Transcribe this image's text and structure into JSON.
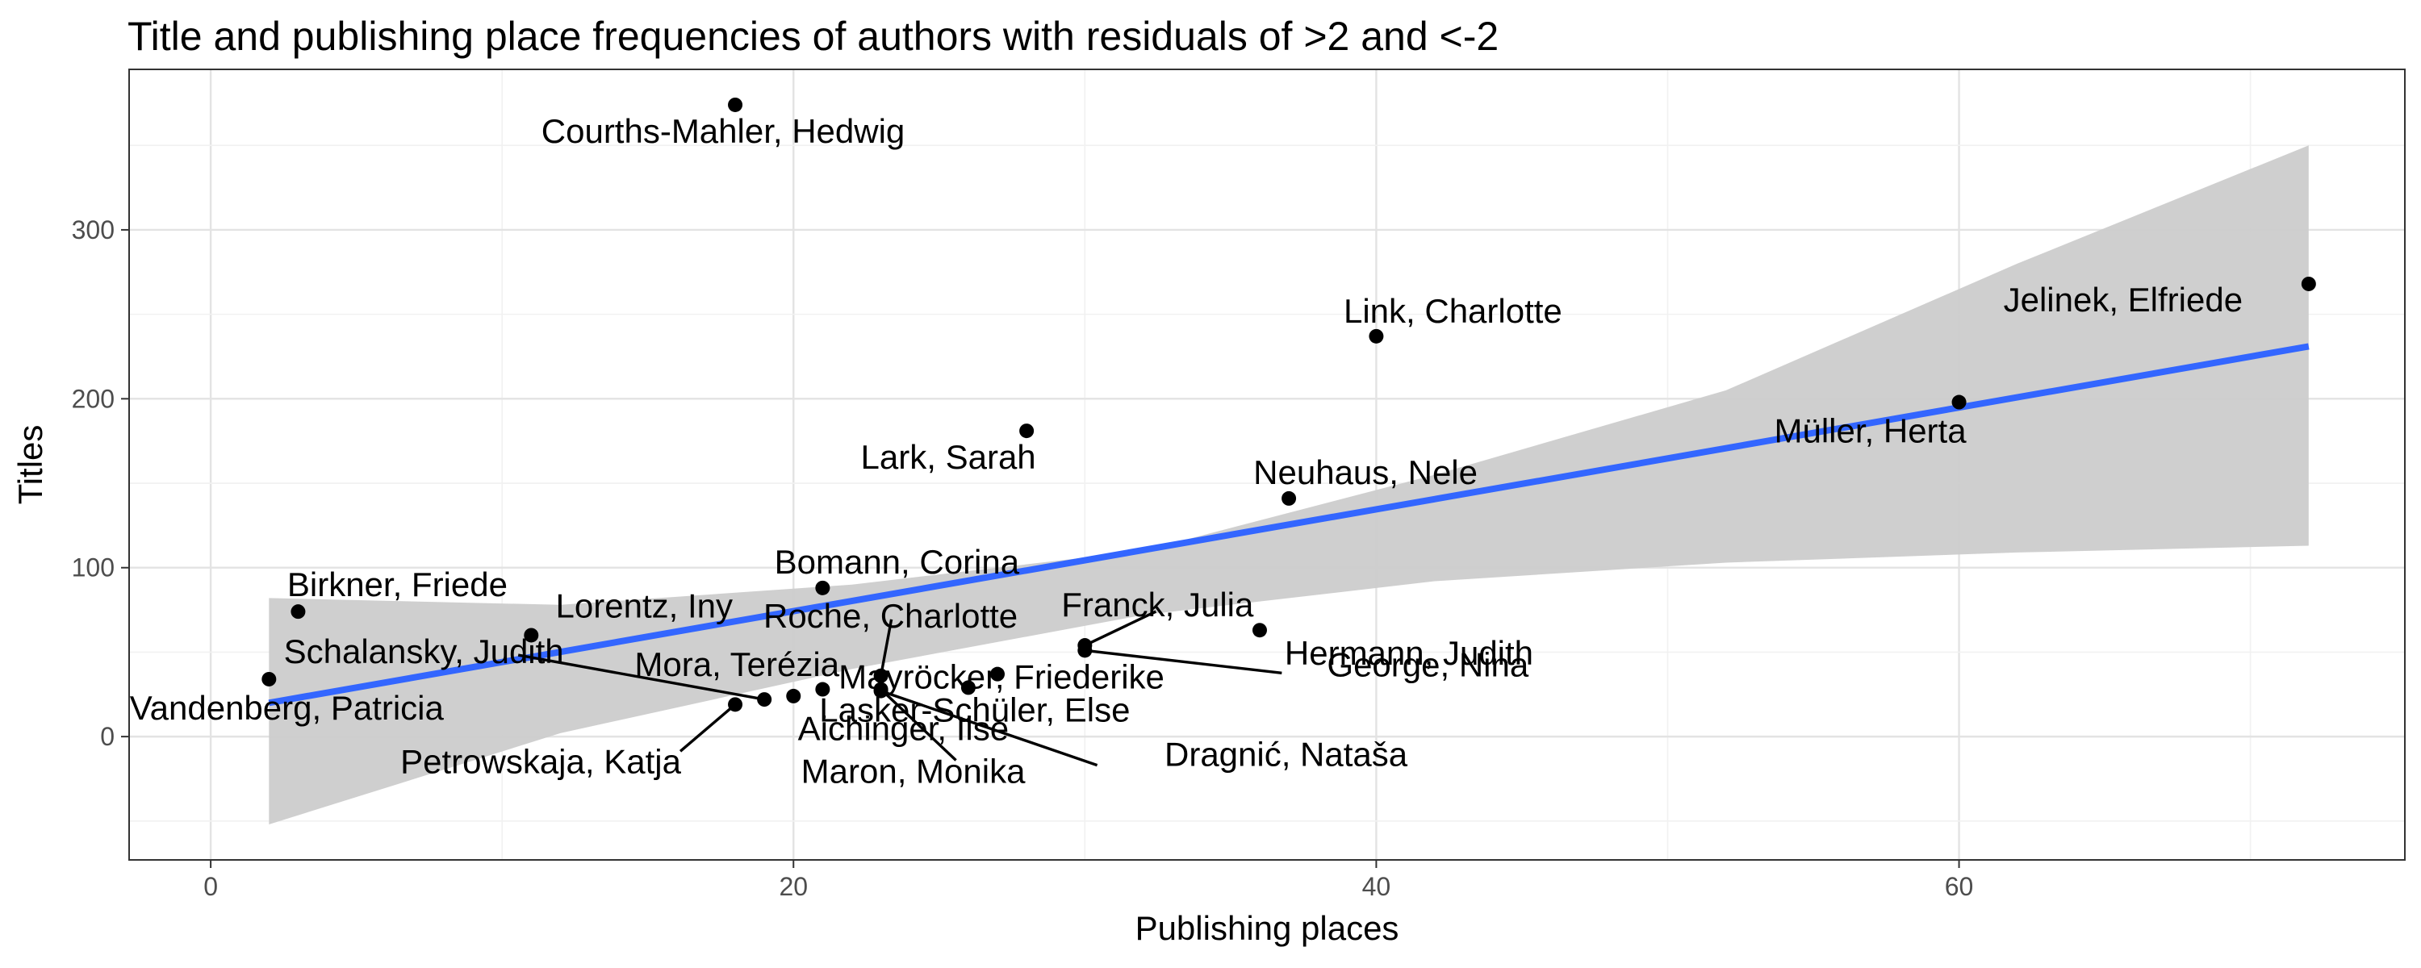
{
  "chart_data": {
    "type": "scatter",
    "title": "Title and publishing place frequencies of authors with residuals of >2 and <-2",
    "xlabel": "Publishing places",
    "ylabel": "Titles",
    "xlim": [
      -2.8,
      75.3
    ],
    "ylim": [
      -73,
      395
    ],
    "x_ticks": [
      0,
      20,
      40,
      60
    ],
    "y_ticks": [
      0,
      100,
      200,
      300
    ],
    "grid": true,
    "points": [
      {
        "label": "Courths-Mahler, Hedwig",
        "x": 18,
        "y": 374
      },
      {
        "label": "Jelinek, Elfriede",
        "x": 72,
        "y": 268
      },
      {
        "label": "Link, Charlotte",
        "x": 40,
        "y": 237
      },
      {
        "label": "Müller, Herta",
        "x": 60,
        "y": 198
      },
      {
        "label": "Lark, Sarah",
        "x": 28,
        "y": 181
      },
      {
        "label": "Neuhaus, Nele",
        "x": 37,
        "y": 141
      },
      {
        "label": "Bomann, Corina",
        "x": 21,
        "y": 88
      },
      {
        "label": "Birkner, Friede",
        "x": 3,
        "y": 74
      },
      {
        "label": "Lorentz, Iny",
        "x": 11,
        "y": 60
      },
      {
        "label": "Hermann, Judith",
        "x": 36,
        "y": 63
      },
      {
        "label": "Franck, Julia",
        "x": 30,
        "y": 54
      },
      {
        "label": "George, Nina",
        "x": 30,
        "y": 51
      },
      {
        "label": "Roche, Charlotte",
        "x": 23,
        "y": 36
      },
      {
        "label": "Mayröcker, Friederike",
        "x": 27,
        "y": 37
      },
      {
        "label": "Schalansky, Judith",
        "x": 19,
        "y": 22
      },
      {
        "label": "Vandenberg, Patricia",
        "x": 2,
        "y": 34
      },
      {
        "label": "Mora, Terézia",
        "x": 20,
        "y": 24
      },
      {
        "label": "Petrowskaja, Katja",
        "x": 18,
        "y": 19
      },
      {
        "label": "Aichinger, Ilse",
        "x": 21,
        "y": 28
      },
      {
        "label": "Lasker-Schüler, Else",
        "x": 26,
        "y": 29
      },
      {
        "label": "Maron, Monika",
        "x": 23,
        "y": 28
      },
      {
        "label": "Dragnić, Nataša",
        "x": 23,
        "y": 27
      }
    ],
    "fit": {
      "method": "lm",
      "x": [
        2,
        72
      ],
      "y": [
        20,
        231
      ],
      "color": "#3366FF"
    },
    "confidence_band": {
      "x": [
        2,
        12,
        22,
        32,
        42,
        52,
        62,
        72
      ],
      "lower": [
        -52,
        2,
        40,
        72,
        92,
        103,
        109,
        113
      ],
      "upper": [
        82,
        78,
        90,
        110,
        155,
        205,
        280,
        350
      ],
      "color": "#cccccc"
    }
  }
}
